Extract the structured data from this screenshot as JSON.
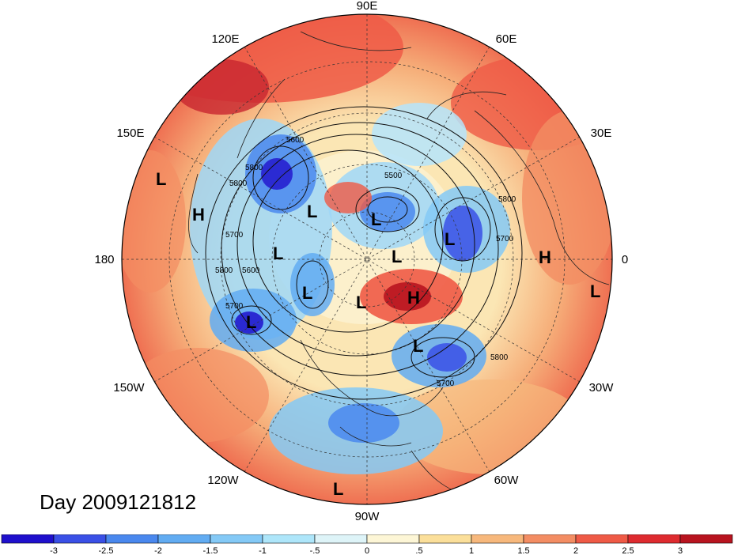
{
  "map": {
    "projection": "north polar stereographic",
    "field_shaded": "temperature anomaly",
    "field_contoured": "500 hPa geopotential height",
    "longitude_labels": [
      "90E",
      "120E",
      "60E",
      "150E",
      "30E",
      "180",
      "0",
      "150W",
      "30W",
      "120W",
      "60W",
      "90W"
    ],
    "contour_labels": [
      "5600",
      "5500",
      "5800",
      "5800",
      "5700",
      "5700",
      "5800",
      "5600",
      "5700",
      "5800",
      "5700",
      "5800"
    ],
    "pressure_centers": [
      {
        "type": "L",
        "region": "western Pacific"
      },
      {
        "type": "H",
        "region": "north Pacific"
      },
      {
        "type": "L",
        "region": "eastern Siberia"
      },
      {
        "type": "L",
        "region": "Laptev Sea"
      },
      {
        "type": "L",
        "region": "Bering Sea"
      },
      {
        "type": "L",
        "region": "Arctic Ocean"
      },
      {
        "type": "L",
        "region": "Scandinavia"
      },
      {
        "type": "L",
        "region": "Alaska"
      },
      {
        "type": "L",
        "region": "Canadian Arctic"
      },
      {
        "type": "H",
        "region": "Greenland"
      },
      {
        "type": "H",
        "region": "Sahara"
      },
      {
        "type": "L",
        "region": "Gulf of Alaska"
      },
      {
        "type": "L",
        "region": "Labrador Sea"
      },
      {
        "type": "L",
        "region": "southern Atlantic"
      },
      {
        "type": "L",
        "region": "eastern Pacific"
      }
    ],
    "colors": {
      "deep_blue": "#1a10d0",
      "blue": "#3a6ff0",
      "light_blue": "#9fd7f7",
      "pale": "#fdf5d6",
      "orange": "#f6ae79",
      "red": "#ef4d3c",
      "dark_red": "#b41621"
    }
  },
  "day_label": "Day 2009121812",
  "colorbar": {
    "ticks": [
      "-3",
      "-2.5",
      "-2",
      "-1.5",
      "-1",
      "-.5",
      "0",
      ".5",
      "1",
      "1.5",
      "2",
      "2.5",
      "3"
    ],
    "colors": [
      "#1f10cc",
      "#3a50e6",
      "#4a88ee",
      "#62acf2",
      "#84c9f6",
      "#aee6fa",
      "#def4f8",
      "#fdf6d6",
      "#fbdf9a",
      "#f7b87c",
      "#f38d63",
      "#ef5a46",
      "#de2b2f",
      "#b8141f"
    ]
  }
}
